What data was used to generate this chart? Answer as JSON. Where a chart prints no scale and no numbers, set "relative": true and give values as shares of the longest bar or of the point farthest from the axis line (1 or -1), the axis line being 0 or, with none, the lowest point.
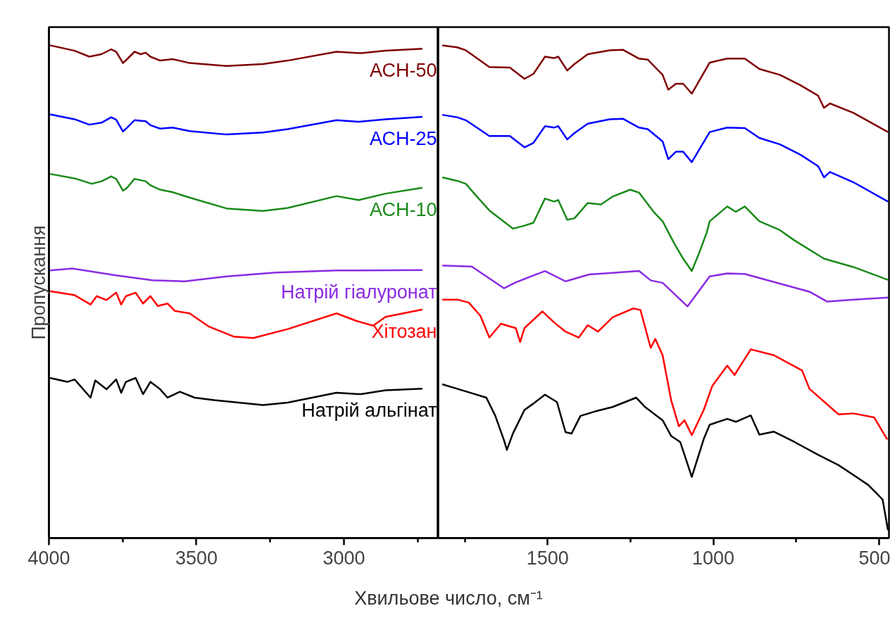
{
  "chart_data": [
    {
      "type": "line",
      "relative": true,
      "xlabel": "Хвильове число, см⁻¹",
      "ylabel": "Пропускання",
      "xlim": [
        4000,
        2680
      ],
      "xticks": [
        4000,
        {
          "value": 3750,
          "label": null
        },
        3500,
        {
          "value": 3250,
          "label": null
        },
        3000,
        {
          "value": 2750,
          "label": null
        }
      ],
      "series": [
        {
          "name": "АСН-50",
          "color": "#800000",
          "x": [
            3996,
            3913,
            3863,
            3822,
            3789,
            3772,
            3749,
            3735,
            3710,
            3689,
            3672,
            3656,
            3623,
            3581,
            3523,
            3398,
            3274,
            3191,
            3025,
            2942,
            2859,
            2734
          ],
          "values": [
            1.0,
            0.989,
            0.977,
            0.982,
            0.992,
            0.987,
            0.964,
            0.972,
            0.987,
            0.982,
            0.985,
            0.977,
            0.969,
            0.972,
            0.964,
            0.958,
            0.962,
            0.969,
            0.987,
            0.984,
            0.989,
            0.993
          ]
        },
        {
          "name": "АСН-25",
          "color": "#0000ff",
          "x": [
            3996,
            3913,
            3863,
            3822,
            3789,
            3772,
            3749,
            3735,
            3710,
            3672,
            3656,
            3623,
            3581,
            3523,
            3398,
            3274,
            3191,
            3025,
            2950,
            2859,
            2734
          ],
          "values": [
            0.86,
            0.85,
            0.839,
            0.843,
            0.854,
            0.849,
            0.825,
            0.833,
            0.848,
            0.846,
            0.838,
            0.831,
            0.833,
            0.826,
            0.819,
            0.823,
            0.83,
            0.848,
            0.845,
            0.85,
            0.855
          ]
        },
        {
          "name": "АСН-10",
          "color": "#1a8a1a",
          "x": [
            3996,
            3913,
            3855,
            3822,
            3789,
            3772,
            3749,
            3735,
            3710,
            3672,
            3656,
            3623,
            3581,
            3523,
            3398,
            3274,
            3191,
            3025,
            2950,
            2859,
            2734
          ],
          "values": [
            0.739,
            0.73,
            0.719,
            0.724,
            0.734,
            0.729,
            0.705,
            0.711,
            0.729,
            0.724,
            0.716,
            0.707,
            0.702,
            0.691,
            0.669,
            0.664,
            0.67,
            0.694,
            0.686,
            0.699,
            0.711
          ]
        },
        {
          "name": "Натрій гіалуронат",
          "color": "#8a2be2",
          "x": [
            3996,
            3921,
            3772,
            3648,
            3540,
            3398,
            3232,
            3025,
            2734
          ],
          "values": [
            0.543,
            0.547,
            0.533,
            0.523,
            0.521,
            0.531,
            0.539,
            0.543,
            0.544
          ]
        },
        {
          "name": "Хітозан",
          "color": "#ff0000",
          "x": [
            3996,
            3913,
            3859,
            3838,
            3805,
            3772,
            3755,
            3739,
            3706,
            3681,
            3656,
            3631,
            3598,
            3573,
            3523,
            3457,
            3374,
            3307,
            3191,
            3025,
            2959,
            2901,
            2859,
            2734
          ],
          "values": [
            0.501,
            0.493,
            0.474,
            0.491,
            0.483,
            0.498,
            0.474,
            0.491,
            0.498,
            0.476,
            0.491,
            0.471,
            0.476,
            0.461,
            0.456,
            0.429,
            0.409,
            0.406,
            0.424,
            0.456,
            0.441,
            0.431,
            0.449,
            0.464
          ]
        },
        {
          "name": "Натрій альгінат",
          "color": "#000000",
          "x": [
            3996,
            3938,
            3913,
            3859,
            3843,
            3805,
            3772,
            3755,
            3739,
            3706,
            3681,
            3656,
            3623,
            3598,
            3556,
            3506,
            3440,
            3357,
            3274,
            3191,
            3025,
            2942,
            2859,
            2734
          ],
          "values": [
            0.325,
            0.317,
            0.322,
            0.285,
            0.32,
            0.302,
            0.322,
            0.295,
            0.317,
            0.325,
            0.292,
            0.317,
            0.302,
            0.285,
            0.297,
            0.285,
            0.28,
            0.275,
            0.27,
            0.275,
            0.295,
            0.292,
            0.3,
            0.303
          ]
        }
      ]
    },
    {
      "type": "line",
      "relative": true,
      "xlim": [
        1830,
        470
      ],
      "xticks": [
        {
          "value": 1750,
          "label": null
        },
        1500,
        {
          "value": 1250,
          "label": null
        },
        1000,
        {
          "value": 750,
          "label": null
        },
        500
      ],
      "series": [
        {
          "color": "#800000",
          "x": [
            1818,
            1773,
            1747,
            1720,
            1676,
            1614,
            1570,
            1543,
            1508,
            1481,
            1468,
            1441,
            1419,
            1379,
            1313,
            1273,
            1224,
            1198,
            1153,
            1136,
            1113,
            1091,
            1065,
            1011,
            958,
            905,
            861,
            799,
            737,
            684,
            666,
            648,
            577,
            473
          ],
          "values": [
            1.0,
            0.996,
            0.99,
            0.977,
            0.956,
            0.955,
            0.932,
            0.942,
            0.977,
            0.974,
            0.977,
            0.949,
            0.962,
            0.982,
            0.99,
            0.991,
            0.973,
            0.971,
            0.94,
            0.91,
            0.922,
            0.922,
            0.902,
            0.965,
            0.973,
            0.973,
            0.952,
            0.94,
            0.919,
            0.898,
            0.873,
            0.882,
            0.863,
            0.824
          ]
        },
        {
          "color": "#0000ff",
          "x": [
            1818,
            1773,
            1747,
            1720,
            1676,
            1614,
            1570,
            1543,
            1508,
            1481,
            1468,
            1441,
            1419,
            1379,
            1313,
            1273,
            1224,
            1198,
            1153,
            1136,
            1113,
            1091,
            1065,
            1011,
            958,
            905,
            861,
            799,
            737,
            684,
            666,
            648,
            577,
            473
          ],
          "values": [
            0.859,
            0.854,
            0.848,
            0.836,
            0.816,
            0.816,
            0.793,
            0.802,
            0.836,
            0.833,
            0.836,
            0.809,
            0.822,
            0.841,
            0.85,
            0.851,
            0.833,
            0.83,
            0.805,
            0.769,
            0.784,
            0.784,
            0.763,
            0.824,
            0.833,
            0.832,
            0.812,
            0.799,
            0.778,
            0.755,
            0.732,
            0.743,
            0.722,
            0.683
          ]
        },
        {
          "color": "#1a8a1a",
          "x": [
            1818,
            1773,
            1747,
            1720,
            1676,
            1605,
            1570,
            1543,
            1508,
            1481,
            1468,
            1441,
            1419,
            1379,
            1339,
            1304,
            1251,
            1224,
            1180,
            1153,
            1118,
            1091,
            1065,
            1042,
            1020,
            1011,
            958,
            932,
            905,
            861,
            799,
            755,
            666,
            577,
            473
          ],
          "values": [
            0.732,
            0.725,
            0.719,
            0.698,
            0.665,
            0.628,
            0.634,
            0.64,
            0.689,
            0.683,
            0.686,
            0.646,
            0.649,
            0.68,
            0.677,
            0.693,
            0.707,
            0.701,
            0.662,
            0.643,
            0.598,
            0.567,
            0.542,
            0.58,
            0.62,
            0.643,
            0.673,
            0.662,
            0.673,
            0.643,
            0.625,
            0.604,
            0.567,
            0.55,
            0.524
          ]
        },
        {
          "color": "#8a2be2",
          "x": [
            1818,
            1729,
            1632,
            1596,
            1508,
            1446,
            1375,
            1224,
            1189,
            1153,
            1078,
            1011,
            958,
            905,
            710,
            657,
            577,
            473
          ],
          "values": [
            0.553,
            0.551,
            0.507,
            0.519,
            0.542,
            0.521,
            0.535,
            0.542,
            0.523,
            0.518,
            0.47,
            0.531,
            0.537,
            0.536,
            0.5,
            0.48,
            0.484,
            0.488
          ]
        },
        {
          "color": "#ff0000",
          "x": [
            1818,
            1773,
            1738,
            1703,
            1676,
            1641,
            1596,
            1583,
            1570,
            1516,
            1481,
            1446,
            1406,
            1379,
            1348,
            1304,
            1242,
            1220,
            1189,
            1175,
            1153,
            1127,
            1104,
            1087,
            1065,
            1029,
            1003,
            958,
            936,
            887,
            817,
            732,
            710,
            622,
            577,
            515,
            475
          ],
          "values": [
            0.484,
            0.484,
            0.478,
            0.451,
            0.407,
            0.435,
            0.426,
            0.398,
            0.426,
            0.46,
            0.438,
            0.419,
            0.407,
            0.432,
            0.419,
            0.448,
            0.466,
            0.463,
            0.386,
            0.404,
            0.371,
            0.279,
            0.227,
            0.239,
            0.209,
            0.26,
            0.309,
            0.35,
            0.331,
            0.383,
            0.371,
            0.34,
            0.303,
            0.251,
            0.253,
            0.245,
            0.2
          ]
        },
        {
          "color": "#000000",
          "x": [
            1818,
            1773,
            1729,
            1685,
            1658,
            1632,
            1623,
            1605,
            1570,
            1543,
            1508,
            1472,
            1446,
            1428,
            1401,
            1357,
            1304,
            1233,
            1206,
            1153,
            1127,
            1100,
            1065,
            1029,
            1011,
            958,
            932,
            887,
            861,
            817,
            755,
            684,
            622,
            568,
            533,
            506,
            489,
            473
          ],
          "values": [
            0.312,
            0.303,
            0.294,
            0.285,
            0.248,
            0.199,
            0.179,
            0.212,
            0.26,
            0.273,
            0.291,
            0.276,
            0.215,
            0.212,
            0.248,
            0.257,
            0.266,
            0.285,
            0.266,
            0.239,
            0.207,
            0.195,
            0.124,
            0.201,
            0.23,
            0.242,
            0.236,
            0.249,
            0.21,
            0.216,
            0.195,
            0.169,
            0.148,
            0.124,
            0.108,
            0.09,
            0.078,
            0.016
          ]
        }
      ]
    }
  ]
}
